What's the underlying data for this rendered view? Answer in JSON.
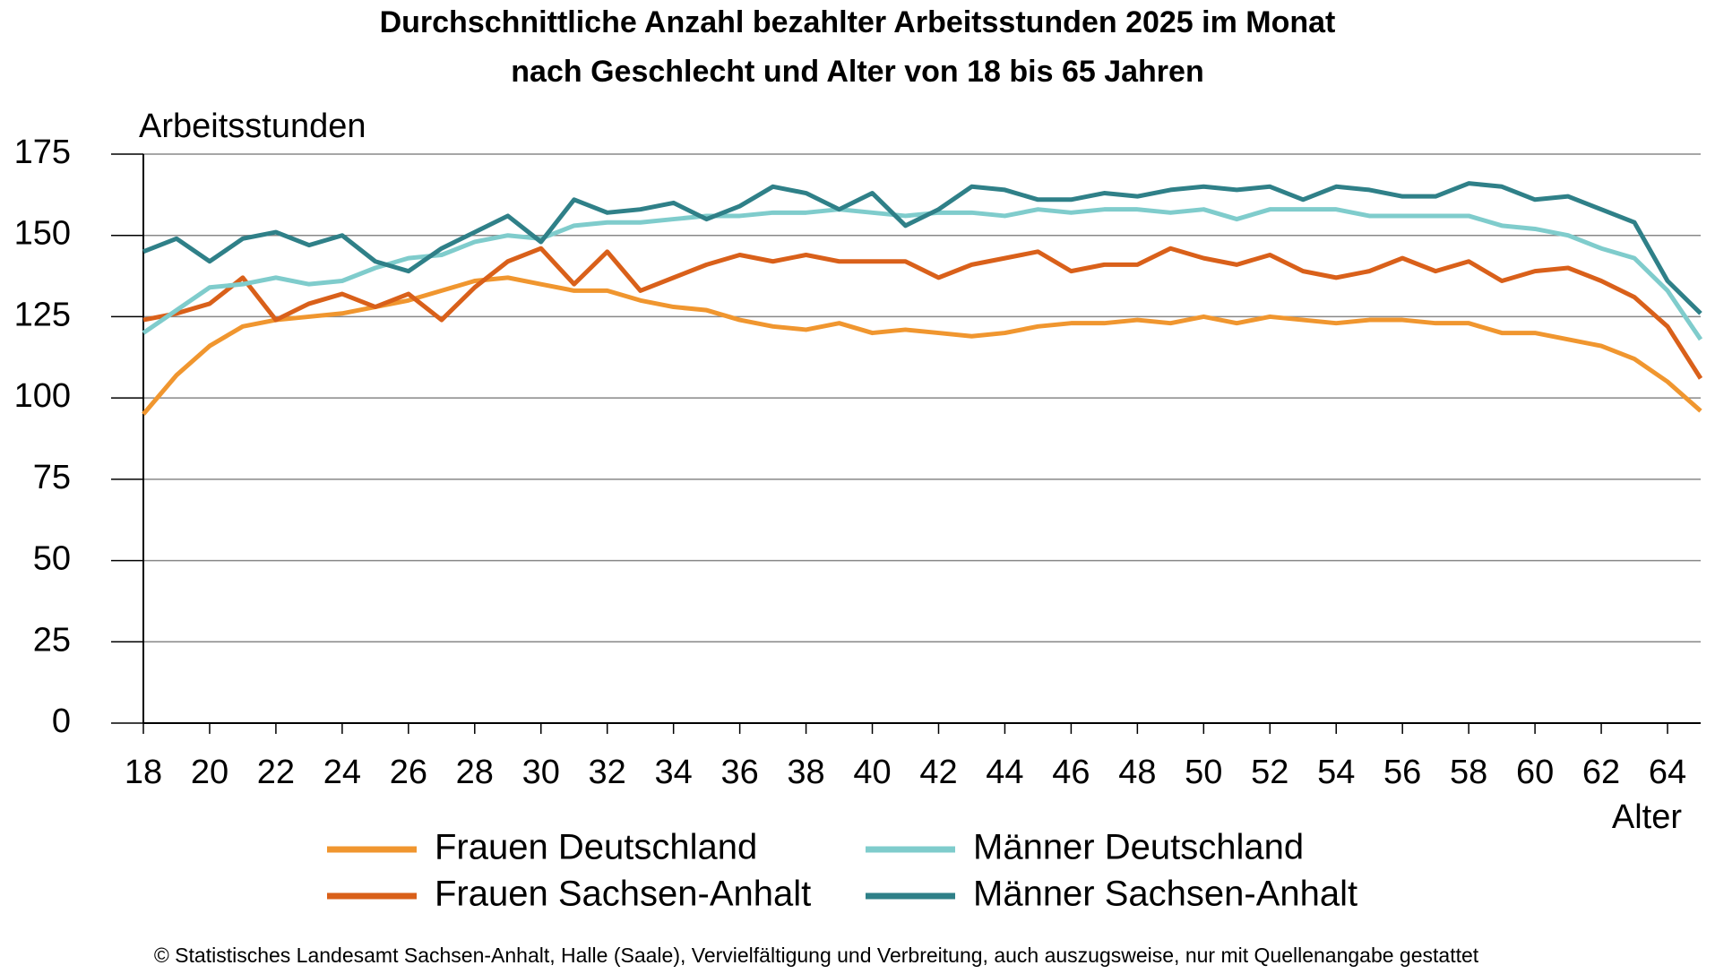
{
  "chart_data": {
    "type": "line",
    "title": "Durchschnittliche Anzahl bezahlter Arbeitsstunden 2025 im Monat",
    "subtitle": "nach Geschlecht und Alter von 18 bis 65 Jahren",
    "y_label": "Arbeitsstunden",
    "x_label": "Alter",
    "footer": "© Statistisches Landesamt Sachsen-Anhalt, Halle (Saale), Vervielfältigung und Verbreitung, auch auszugsweise, nur mit Quellenangabe gestattet",
    "x": [
      18,
      19,
      20,
      21,
      22,
      23,
      24,
      25,
      26,
      27,
      28,
      29,
      30,
      31,
      32,
      33,
      34,
      35,
      36,
      37,
      38,
      39,
      40,
      41,
      42,
      43,
      44,
      45,
      46,
      47,
      48,
      49,
      50,
      51,
      52,
      53,
      54,
      55,
      56,
      57,
      58,
      59,
      60,
      61,
      62,
      63,
      64,
      65
    ],
    "xlim": [
      18,
      65
    ],
    "xticks": [
      18,
      20,
      22,
      24,
      26,
      28,
      30,
      32,
      34,
      36,
      38,
      40,
      42,
      44,
      46,
      48,
      50,
      52,
      54,
      56,
      58,
      60,
      62,
      64
    ],
    "ylim": [
      0,
      175
    ],
    "yticks": [
      0,
      25,
      50,
      75,
      100,
      125,
      150,
      175
    ],
    "grid": true,
    "series": [
      {
        "name": "Frauen Deutschland",
        "color": "#f0962f",
        "values": [
          95,
          107,
          116,
          122,
          124,
          125,
          126,
          128,
          130,
          133,
          136,
          137,
          135,
          133,
          133,
          130,
          128,
          127,
          124,
          122,
          121,
          123,
          120,
          121,
          120,
          119,
          120,
          122,
          123,
          123,
          124,
          123,
          125,
          123,
          125,
          124,
          123,
          124,
          124,
          123,
          123,
          120,
          120,
          118,
          116,
          112,
          105,
          96
        ]
      },
      {
        "name": "Frauen Sachsen-Anhalt",
        "color": "#d9601a",
        "values": [
          124,
          126,
          129,
          137,
          124,
          129,
          132,
          128,
          132,
          124,
          134,
          142,
          146,
          135,
          145,
          133,
          137,
          141,
          144,
          142,
          144,
          142,
          142,
          142,
          137,
          141,
          143,
          145,
          139,
          141,
          141,
          146,
          143,
          141,
          144,
          139,
          137,
          139,
          143,
          139,
          142,
          136,
          139,
          140,
          136,
          131,
          122,
          106
        ]
      },
      {
        "name": "Männer Deutschland",
        "color": "#7fcccc",
        "values": [
          120,
          127,
          134,
          135,
          137,
          135,
          136,
          140,
          143,
          144,
          148,
          150,
          149,
          153,
          154,
          154,
          155,
          156,
          156,
          157,
          157,
          158,
          157,
          156,
          157,
          157,
          156,
          158,
          157,
          158,
          158,
          157,
          158,
          155,
          158,
          158,
          158,
          156,
          156,
          156,
          156,
          153,
          152,
          150,
          146,
          143,
          133,
          118
        ]
      },
      {
        "name": "Männer Sachsen-Anhalt",
        "color": "#2f8088",
        "values": [
          145,
          149,
          142,
          149,
          151,
          147,
          150,
          142,
          139,
          146,
          151,
          156,
          148,
          161,
          157,
          158,
          160,
          155,
          159,
          165,
          163,
          158,
          163,
          153,
          158,
          165,
          164,
          161,
          161,
          163,
          162,
          164,
          165,
          164,
          165,
          161,
          165,
          164,
          162,
          162,
          166,
          165,
          161,
          162,
          158,
          154,
          136,
          126
        ]
      }
    ]
  }
}
